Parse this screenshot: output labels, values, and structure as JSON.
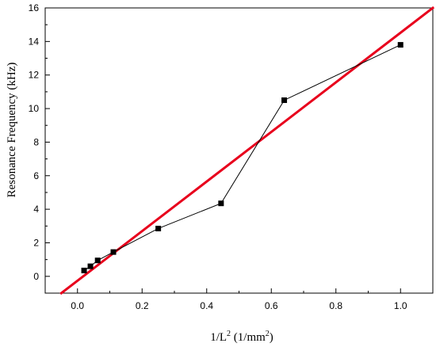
{
  "chart_data": {
    "type": "scatter",
    "title": "",
    "xlabel": {
      "prefix": "1/L",
      "sup": "2",
      "middle": " (1/mm",
      "sup2": "2",
      "suffix": ")"
    },
    "ylabel": "Resonance Frequency (kHz)",
    "xlim": [
      -0.1,
      1.1
    ],
    "ylim": [
      -1,
      16
    ],
    "x_ticks": [
      0.0,
      0.2,
      0.4,
      0.6,
      0.8,
      1.0
    ],
    "x_tick_labels": [
      "0.0",
      "0.2",
      "0.4",
      "0.6",
      "0.8",
      "1.0"
    ],
    "y_ticks": [
      0,
      2,
      4,
      6,
      8,
      10,
      12,
      14,
      16
    ],
    "y_tick_labels": [
      "0",
      "2",
      "4",
      "6",
      "8",
      "10",
      "12",
      "14",
      "16"
    ],
    "grid": false,
    "legend": "none",
    "series": [
      {
        "kind": "line+markers",
        "marker": "square",
        "color": "#000000",
        "x": [
          0.0204,
          0.04,
          0.0625,
          0.1111,
          0.25,
          0.4444,
          0.64,
          1.0
        ],
        "y": [
          0.35,
          0.6,
          0.95,
          1.45,
          2.85,
          4.35,
          10.5,
          13.8
        ]
      },
      {
        "kind": "fit-line",
        "color": "#e8001c",
        "x": [
          -0.05,
          1.1
        ],
        "y": [
          -1.0,
          16.0
        ]
      }
    ]
  }
}
